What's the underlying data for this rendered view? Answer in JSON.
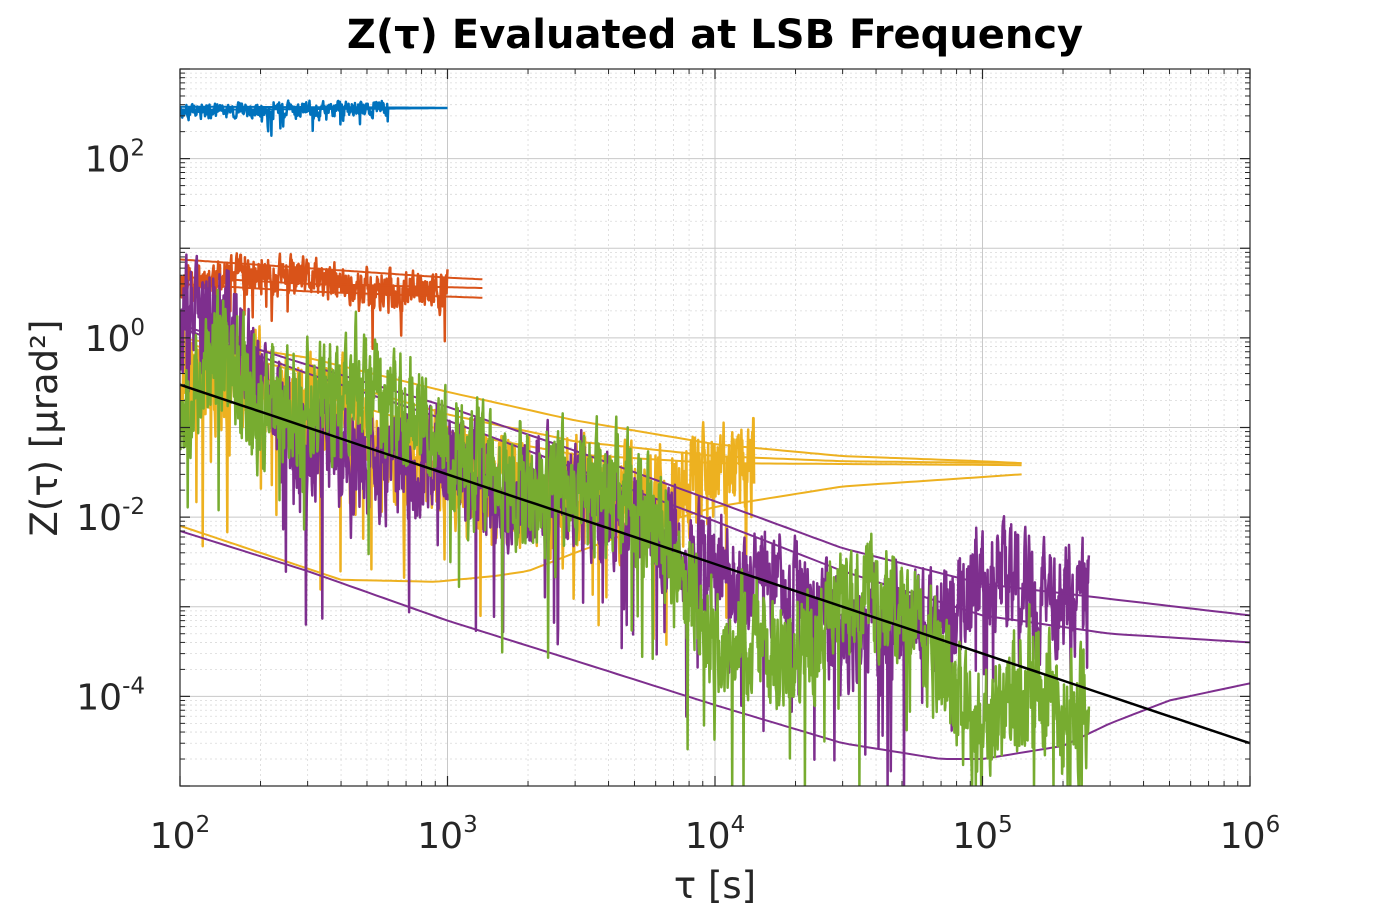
{
  "chart_data": {
    "type": "line",
    "title": "Z(τ) Evaluated at LSB Frequency",
    "xlabel": "τ [s]",
    "ylabel": "Z(τ) [μrad²]",
    "xscale": "log",
    "yscale": "log",
    "xlim": [
      100,
      1000000
    ],
    "ylim": [
      1e-05,
      1000
    ],
    "grid": true,
    "x_ticks": [
      {
        "base": "10",
        "exp": "2",
        "value": 100
      },
      {
        "base": "10",
        "exp": "3",
        "value": 1000
      },
      {
        "base": "10",
        "exp": "4",
        "value": 10000
      },
      {
        "base": "10",
        "exp": "5",
        "value": 100000
      },
      {
        "base": "10",
        "exp": "6",
        "value": 1000000
      }
    ],
    "y_ticks": [
      {
        "base": "10",
        "exp": "-4",
        "value": 0.0001
      },
      {
        "base": "10",
        "exp": "-2",
        "value": 0.01
      },
      {
        "base": "10",
        "exp": "0",
        "value": 1
      },
      {
        "base": "10",
        "exp": "2",
        "value": 100
      }
    ],
    "colors": {
      "blue": "#0072BD",
      "orange": "#D95319",
      "yellow": "#EDB120",
      "purple": "#7E2F8E",
      "green": "#77AC30",
      "black": "#000000"
    },
    "series": [
      {
        "name": "blue-data",
        "color": "blue",
        "width": 2.5,
        "noise": 0.07,
        "seed": 3,
        "points": [
          [
            100,
            340
          ],
          [
            200,
            345
          ],
          [
            400,
            365
          ],
          [
            600,
            360
          ]
        ]
      },
      {
        "name": "blue-bound-1",
        "color": "blue",
        "width": 2,
        "points": [
          [
            100,
            380
          ],
          [
            1000,
            370
          ]
        ]
      },
      {
        "name": "blue-bound-2",
        "color": "blue",
        "width": 2,
        "points": [
          [
            100,
            350
          ],
          [
            1000,
            365
          ]
        ]
      },
      {
        "name": "orange-data",
        "color": "orange",
        "width": 2.5,
        "noise": 0.18,
        "seed": 11,
        "points": [
          [
            100,
            4.5
          ],
          [
            200,
            5
          ],
          [
            300,
            4.5
          ],
          [
            500,
            3.5
          ],
          [
            700,
            3.3
          ],
          [
            1000,
            3.4
          ]
        ]
      },
      {
        "name": "orange-upper",
        "color": "orange",
        "width": 2,
        "points": [
          [
            100,
            7.5
          ],
          [
            300,
            6
          ],
          [
            1000,
            4.7
          ],
          [
            1350,
            4.5
          ]
        ]
      },
      {
        "name": "orange-mid",
        "color": "orange",
        "width": 2,
        "points": [
          [
            100,
            4.8
          ],
          [
            300,
            4
          ],
          [
            1350,
            3.6
          ]
        ]
      },
      {
        "name": "orange-lower",
        "color": "orange",
        "width": 2,
        "points": [
          [
            100,
            4
          ],
          [
            300,
            3.3
          ],
          [
            700,
            3
          ],
          [
            1350,
            2.8
          ]
        ]
      },
      {
        "name": "yellow-data",
        "color": "yellow",
        "width": 2.5,
        "noise": 0.5,
        "seed": 21,
        "points": [
          [
            100,
            0.5
          ],
          [
            150,
            0.4
          ],
          [
            200,
            0.25
          ],
          [
            300,
            0.15
          ],
          [
            500,
            0.1
          ],
          [
            700,
            0.05
          ],
          [
            1000,
            0.03
          ],
          [
            1500,
            0.02
          ],
          [
            2000,
            0.015
          ],
          [
            3000,
            0.02
          ],
          [
            5000,
            0.015
          ],
          [
            8000,
            0.02
          ],
          [
            10000,
            0.03
          ],
          [
            14000,
            0.04
          ]
        ]
      },
      {
        "name": "yellow-upper",
        "color": "yellow",
        "width": 2,
        "points": [
          [
            100,
            1
          ],
          [
            300,
            0.6
          ],
          [
            1000,
            0.25
          ],
          [
            3000,
            0.12
          ],
          [
            10000,
            0.065
          ],
          [
            30000,
            0.048
          ],
          [
            100000,
            0.042
          ],
          [
            140000,
            0.04
          ]
        ]
      },
      {
        "name": "yellow-upper-2",
        "color": "yellow",
        "width": 2,
        "points": [
          [
            100,
            0.9
          ],
          [
            300,
            0.4
          ],
          [
            1000,
            0.14
          ],
          [
            3000,
            0.07
          ],
          [
            10000,
            0.048
          ],
          [
            30000,
            0.042
          ],
          [
            140000,
            0.04
          ]
        ]
      },
      {
        "name": "yellow-mid",
        "color": "yellow",
        "width": 2,
        "points": [
          [
            100,
            0.7
          ],
          [
            300,
            0.25
          ],
          [
            1000,
            0.09
          ],
          [
            3000,
            0.05
          ],
          [
            10000,
            0.04
          ],
          [
            140000,
            0.038
          ]
        ]
      },
      {
        "name": "yellow-lower",
        "color": "yellow",
        "width": 2,
        "points": [
          [
            100,
            0.008
          ],
          [
            200,
            0.004
          ],
          [
            400,
            0.002
          ],
          [
            900,
            0.0019
          ],
          [
            1500,
            0.0022
          ],
          [
            2000,
            0.0025
          ],
          [
            3000,
            0.004
          ],
          [
            5000,
            0.007
          ],
          [
            10000,
            0.013
          ],
          [
            30000,
            0.022
          ],
          [
            140000,
            0.03
          ]
        ]
      },
      {
        "name": "purple-data",
        "color": "purple",
        "width": 2.5,
        "noise": 0.5,
        "seed": 37,
        "points": [
          [
            100,
            1.5
          ],
          [
            150,
            1.5
          ],
          [
            200,
            0.25
          ],
          [
            300,
            0.06
          ],
          [
            500,
            0.04
          ],
          [
            800,
            0.03
          ],
          [
            1000,
            0.06
          ],
          [
            1500,
            0.02
          ],
          [
            2000,
            0.02
          ],
          [
            3000,
            0.02
          ],
          [
            5000,
            0.01
          ],
          [
            7000,
            0.005
          ],
          [
            10000,
            0.0025
          ],
          [
            20000,
            0.0015
          ],
          [
            30000,
            0.0005
          ],
          [
            50000,
            0.0006
          ],
          [
            70000,
            0.0006
          ],
          [
            90000,
            0.0012
          ],
          [
            110000,
            0.002
          ],
          [
            160000,
            0.0012
          ],
          [
            250000,
            0.0013
          ]
        ]
      },
      {
        "name": "purple-upper",
        "color": "purple",
        "width": 2,
        "points": [
          [
            100,
            1.4
          ],
          [
            300,
            0.5
          ],
          [
            1000,
            0.17
          ],
          [
            3000,
            0.055
          ],
          [
            10000,
            0.015
          ],
          [
            30000,
            0.0045
          ],
          [
            100000,
            0.0018
          ],
          [
            1000000,
            0.0008
          ]
        ]
      },
      {
        "name": "purple-mid",
        "color": "purple",
        "width": 2,
        "points": [
          [
            100,
            1.3
          ],
          [
            300,
            0.4
          ],
          [
            1000,
            0.12
          ],
          [
            3000,
            0.035
          ],
          [
            10000,
            0.009
          ],
          [
            30000,
            0.0025
          ],
          [
            100000,
            0.0008
          ],
          [
            300000,
            0.0005
          ],
          [
            1000000,
            0.0004
          ]
        ]
      },
      {
        "name": "purple-lower",
        "color": "purple",
        "width": 2,
        "points": [
          [
            100,
            0.007
          ],
          [
            300,
            0.0025
          ],
          [
            1000,
            0.0007
          ],
          [
            3000,
            0.00025
          ],
          [
            10000,
            8e-05
          ],
          [
            30000,
            3e-05
          ],
          [
            70000,
            2e-05
          ],
          [
            100000,
            2e-05
          ],
          [
            200000,
            2.8e-05
          ],
          [
            300000,
            5e-05
          ],
          [
            500000,
            9e-05
          ],
          [
            1000000,
            0.00014
          ]
        ]
      },
      {
        "name": "green-data",
        "color": "green",
        "width": 2.5,
        "noise": 0.55,
        "seed": 53,
        "points": [
          [
            100,
            0.2
          ],
          [
            150,
            0.8
          ],
          [
            200,
            0.15
          ],
          [
            300,
            0.2
          ],
          [
            500,
            0.3
          ],
          [
            800,
            0.12
          ],
          [
            1000,
            0.05
          ],
          [
            2000,
            0.02
          ],
          [
            3000,
            0.02
          ],
          [
            5000,
            0.02
          ],
          [
            7000,
            0.004
          ],
          [
            10000,
            0.0005
          ],
          [
            20000,
            0.0003
          ],
          [
            30000,
            0.0015
          ],
          [
            50000,
            0.001
          ],
          [
            70000,
            0.0002
          ],
          [
            100000,
            3e-05
          ],
          [
            150000,
            0.00015
          ],
          [
            250000,
            6e-05
          ]
        ]
      },
      {
        "name": "black-fit",
        "color": "black",
        "width": 2.5,
        "points": [
          [
            100,
            0.3
          ],
          [
            1000000,
            3e-05
          ]
        ]
      }
    ]
  }
}
